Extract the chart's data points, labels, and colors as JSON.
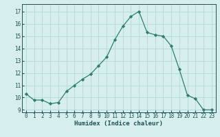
{
  "x": [
    0,
    1,
    2,
    3,
    4,
    5,
    6,
    7,
    8,
    9,
    10,
    11,
    12,
    13,
    14,
    15,
    16,
    17,
    18,
    19,
    20,
    21,
    22,
    23
  ],
  "y": [
    10.3,
    9.8,
    9.8,
    9.5,
    9.6,
    10.5,
    11.0,
    11.5,
    11.9,
    12.6,
    13.3,
    14.7,
    15.8,
    16.6,
    17.0,
    15.3,
    15.1,
    15.0,
    14.2,
    12.3,
    10.2,
    9.9,
    9.0,
    9.0
  ],
  "line_color": "#2e7d6e",
  "marker": "D",
  "marker_size": 2.2,
  "bg_color": "#d6efee",
  "grid_color": "#b2d8d4",
  "xlabel": "Humidex (Indice chaleur)",
  "ylim": [
    8.8,
    17.6
  ],
  "xlim": [
    -0.5,
    23.5
  ],
  "yticks": [
    9,
    10,
    11,
    12,
    13,
    14,
    15,
    16,
    17
  ],
  "xticks": [
    0,
    1,
    2,
    3,
    4,
    5,
    6,
    7,
    8,
    9,
    10,
    11,
    12,
    13,
    14,
    15,
    16,
    17,
    18,
    19,
    20,
    21,
    22,
    23
  ],
  "tick_color": "#1e5050",
  "label_fontsize": 6.5,
  "tick_fontsize": 5.5,
  "linewidth": 0.9
}
